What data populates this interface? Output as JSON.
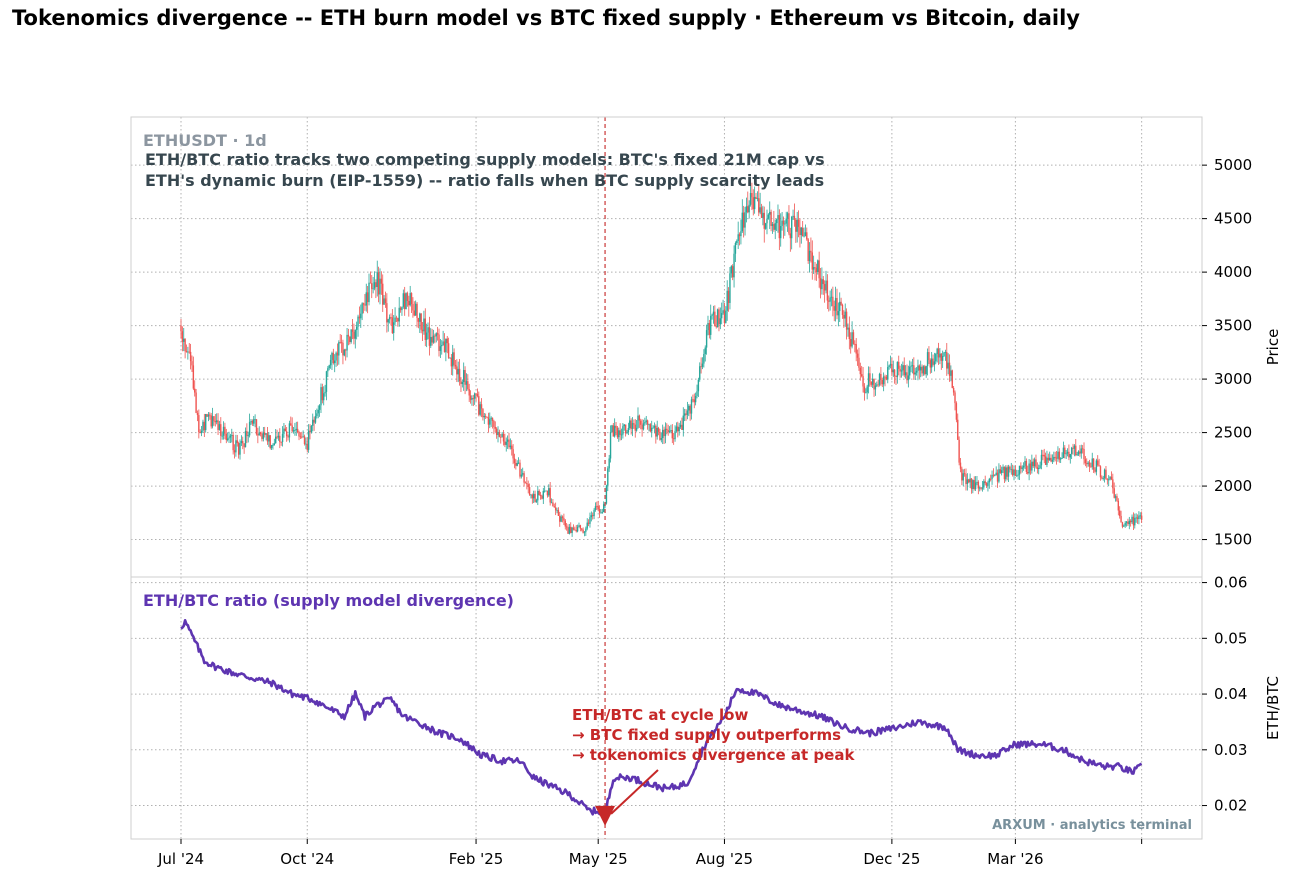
{
  "title": "Tokenomics divergence -- ETH burn model vs BTC fixed supply  ·  Ethereum vs Bitcoin, daily",
  "colors": {
    "up": "#26a69a",
    "down": "#ef5350",
    "ratio_line": "#5e35b1",
    "annotation": "#c62828",
    "grid": "#b0b0b0"
  },
  "chart_data": [
    {
      "type": "candlestick",
      "symbol_label": "ETHUSDT · 1d",
      "description_lines": [
        "ETH/BTC ratio tracks two competing supply models: BTC's fixed 21M cap vs",
        "ETH's dynamic burn (EIP-1559) -- ratio falls when BTC supply scarcity leads"
      ],
      "ylabel": "Price",
      "ylim": [
        1150,
        5450
      ],
      "yticks": [
        1500,
        2000,
        2500,
        3000,
        3500,
        4000,
        4500,
        5000
      ],
      "grid": true,
      "x_start": "2024-07-01",
      "x_end": "2026-06-10",
      "close_anchors": [
        [
          "2024-07-01",
          3500
        ],
        [
          "2024-07-08",
          3150
        ],
        [
          "2024-07-14",
          2550
        ],
        [
          "2024-07-22",
          2650
        ],
        [
          "2024-08-05",
          2450
        ],
        [
          "2024-08-12",
          2320
        ],
        [
          "2024-08-22",
          2600
        ],
        [
          "2024-09-05",
          2400
        ],
        [
          "2024-09-20",
          2550
        ],
        [
          "2024-10-01",
          2400
        ],
        [
          "2024-10-06",
          2650
        ],
        [
          "2024-10-20",
          3200
        ],
        [
          "2024-11-01",
          3350
        ],
        [
          "2024-11-12",
          3700
        ],
        [
          "2024-11-20",
          3950
        ],
        [
          "2024-12-02",
          3450
        ],
        [
          "2024-12-12",
          3800
        ],
        [
          "2024-12-28",
          3400
        ],
        [
          "2025-01-10",
          3300
        ],
        [
          "2025-01-25",
          2950
        ],
        [
          "2025-02-05",
          2700
        ],
        [
          "2025-02-20",
          2500
        ],
        [
          "2025-03-05",
          2150
        ],
        [
          "2025-03-15",
          1900
        ],
        [
          "2025-03-25",
          1950
        ],
        [
          "2025-04-08",
          1580
        ],
        [
          "2025-04-20",
          1600
        ],
        [
          "2025-05-01",
          1800
        ],
        [
          "2025-05-06",
          1800
        ],
        [
          "2025-05-10",
          2500
        ],
        [
          "2025-06-01",
          2600
        ],
        [
          "2025-06-15",
          2450
        ],
        [
          "2025-06-28",
          2500
        ],
        [
          "2025-07-10",
          2800
        ],
        [
          "2025-07-20",
          3500
        ],
        [
          "2025-08-01",
          3600
        ],
        [
          "2025-08-12",
          4400
        ],
        [
          "2025-08-20",
          4650
        ],
        [
          "2025-08-28",
          4500
        ],
        [
          "2025-09-10",
          4400
        ],
        [
          "2025-09-20",
          4450
        ],
        [
          "2025-10-01",
          4200
        ],
        [
          "2025-10-15",
          3800
        ],
        [
          "2025-10-28",
          3600
        ],
        [
          "2025-11-10",
          2950
        ],
        [
          "2025-11-22",
          3000
        ],
        [
          "2025-12-05",
          3100
        ],
        [
          "2025-12-20",
          3050
        ],
        [
          "2026-01-05",
          3300
        ],
        [
          "2026-01-15",
          2950
        ],
        [
          "2026-01-20",
          2100
        ],
        [
          "2026-02-01",
          2000
        ],
        [
          "2026-02-15",
          2100
        ],
        [
          "2026-03-01",
          2150
        ],
        [
          "2026-03-15",
          2200
        ],
        [
          "2026-04-01",
          2300
        ],
        [
          "2026-04-15",
          2350
        ],
        [
          "2026-05-01",
          2150
        ],
        [
          "2026-05-10",
          2050
        ],
        [
          "2026-05-18",
          1600
        ],
        [
          "2026-05-28",
          1700
        ],
        [
          "2026-06-01",
          1720
        ]
      ]
    },
    {
      "type": "line",
      "title": "ETH/BTC ratio (supply model divergence)",
      "ylabel": "ETH/BTC",
      "ylim": [
        0.014,
        0.061
      ],
      "yticks": [
        "0.02",
        "0.03",
        "0.04",
        "0.05",
        "0.06"
      ],
      "grid": true,
      "series": [
        {
          "points": [
            [
              "2024-07-01",
              0.052
            ],
            [
              "2024-07-04",
              0.053
            ],
            [
              "2024-07-10",
              0.05
            ],
            [
              "2024-07-18",
              0.046
            ],
            [
              "2024-07-25",
              0.045
            ],
            [
              "2024-08-05",
              0.044
            ],
            [
              "2024-08-20",
              0.043
            ],
            [
              "2024-09-05",
              0.042
            ],
            [
              "2024-09-20",
              0.04
            ],
            [
              "2024-10-05",
              0.039
            ],
            [
              "2024-10-20",
              0.037
            ],
            [
              "2024-10-28",
              0.036
            ],
            [
              "2024-11-05",
              0.04
            ],
            [
              "2024-11-12",
              0.036
            ],
            [
              "2024-11-20",
              0.038
            ],
            [
              "2024-12-01",
              0.039
            ],
            [
              "2024-12-10",
              0.036
            ],
            [
              "2024-12-20",
              0.035
            ],
            [
              "2025-01-05",
              0.033
            ],
            [
              "2025-01-20",
              0.032
            ],
            [
              "2025-02-05",
              0.029
            ],
            [
              "2025-02-20",
              0.028
            ],
            [
              "2025-03-05",
              0.028
            ],
            [
              "2025-03-15",
              0.025
            ],
            [
              "2025-04-01",
              0.023
            ],
            [
              "2025-04-10",
              0.022
            ],
            [
              "2025-04-25",
              0.019
            ],
            [
              "2025-05-01",
              0.019
            ],
            [
              "2025-05-06",
              0.0185
            ],
            [
              "2025-05-12",
              0.025
            ],
            [
              "2025-05-25",
              0.025
            ],
            [
              "2025-06-05",
              0.024
            ],
            [
              "2025-06-20",
              0.023
            ],
            [
              "2025-07-05",
              0.024
            ],
            [
              "2025-07-18",
              0.031
            ],
            [
              "2025-08-01",
              0.036
            ],
            [
              "2025-08-10",
              0.041
            ],
            [
              "2025-08-25",
              0.04
            ],
            [
              "2025-09-10",
              0.038
            ],
            [
              "2025-09-25",
              0.037
            ],
            [
              "2025-10-10",
              0.036
            ],
            [
              "2025-10-28",
              0.034
            ],
            [
              "2025-11-15",
              0.033
            ],
            [
              "2025-12-05",
              0.034
            ],
            [
              "2025-12-20",
              0.035
            ],
            [
              "2026-01-10",
              0.034
            ],
            [
              "2026-01-18",
              0.03
            ],
            [
              "2026-02-01",
              0.029
            ],
            [
              "2026-02-15",
              0.029
            ],
            [
              "2026-03-01",
              0.031
            ],
            [
              "2026-03-20",
              0.031
            ],
            [
              "2026-04-05",
              0.03
            ],
            [
              "2026-04-20",
              0.028
            ],
            [
              "2026-05-05",
              0.027
            ],
            [
              "2026-05-15",
              0.027
            ],
            [
              "2026-05-25",
              0.026
            ],
            [
              "2026-06-01",
              0.027
            ]
          ]
        }
      ],
      "event_date": "2025-05-06",
      "event_value": 0.0185,
      "annotation_lines": [
        "ETH/BTC at cycle low",
        "→ BTC fixed supply outperforms",
        "→ tokenomics divergence at peak"
      ]
    }
  ],
  "x_ticks": [
    {
      "date": "2024-07-01",
      "label": "Jul '24"
    },
    {
      "date": "2024-10-01",
      "label": "Oct '24"
    },
    {
      "date": "2025-02-01",
      "label": "Feb '25"
    },
    {
      "date": "2025-05-01",
      "label": "May '25"
    },
    {
      "date": "2025-08-01",
      "label": "Aug '25"
    },
    {
      "date": "2025-12-01",
      "label": "Dec '25"
    },
    {
      "date": "2026-03-01",
      "label": "Mar '26"
    },
    {
      "date": "2026-06-01",
      "label": ""
    }
  ],
  "watermark": "ARXUM · analytics terminal"
}
